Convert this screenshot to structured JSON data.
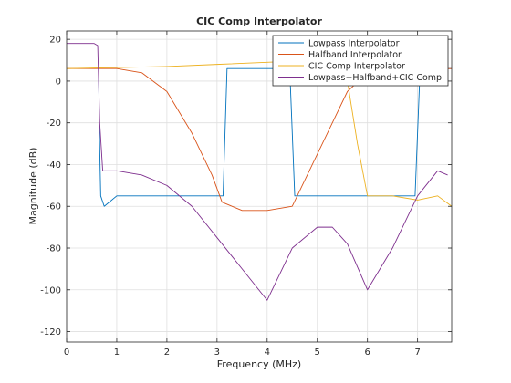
{
  "chart_data": {
    "type": "line",
    "title": "CIC Comp Interpolator",
    "xlabel": "Frequency (MHz)",
    "ylabel": "Magnitude (dB)",
    "xlim": [
      0,
      7.68
    ],
    "ylim": [
      -125,
      24
    ],
    "xticks": [
      0,
      1,
      2,
      3,
      4,
      5,
      6,
      7
    ],
    "yticks": [
      -120,
      -100,
      -80,
      -60,
      -40,
      -20,
      0,
      20
    ],
    "grid": true,
    "legend_position": "top-right",
    "series": [
      {
        "name": "Lowpass Interpolator",
        "color": "#0072BD",
        "shape": "Passband near 6 dB at 3.2-4.5 MHz and beyond 7.0 MHz; stopband ripple peaking near -55 dB with nulls down to about -120 dB",
        "points": [
          [
            0.64,
            6
          ],
          [
            0.65,
            -20
          ],
          [
            0.68,
            -55
          ],
          [
            0.75,
            -60
          ],
          [
            1.0,
            -55
          ],
          [
            1.5,
            -55
          ],
          [
            2.0,
            -55
          ],
          [
            2.5,
            -55
          ],
          [
            3.0,
            -55
          ],
          [
            3.12,
            -55
          ],
          [
            3.2,
            6
          ],
          [
            3.5,
            6
          ],
          [
            4.0,
            6
          ],
          [
            4.45,
            6
          ],
          [
            4.55,
            -55
          ],
          [
            5.0,
            -55
          ],
          [
            5.5,
            -55
          ],
          [
            6.0,
            -55
          ],
          [
            6.5,
            -55
          ],
          [
            6.95,
            -55
          ],
          [
            7.05,
            6
          ],
          [
            7.4,
            6
          ],
          [
            7.68,
            6
          ]
        ]
      },
      {
        "name": "Halfband Interpolator",
        "color": "#D95319",
        "shape": "Passband 6 dB from 0 to about 1.5 MHz, rolls off to about -60 dB near 3.1 MHz, stopband ripple -62 to -72 dB, second passband near 6 dB around 6.1-7.5 MHz",
        "points": [
          [
            0,
            6
          ],
          [
            1.0,
            6
          ],
          [
            1.5,
            4
          ],
          [
            2.0,
            -5
          ],
          [
            2.5,
            -25
          ],
          [
            2.9,
            -45
          ],
          [
            3.1,
            -58
          ],
          [
            3.5,
            -62
          ],
          [
            4.0,
            -62
          ],
          [
            4.5,
            -60
          ],
          [
            4.8,
            -45
          ],
          [
            5.2,
            -25
          ],
          [
            5.6,
            -5
          ],
          [
            6.0,
            4
          ],
          [
            6.5,
            6
          ],
          [
            7.0,
            6
          ],
          [
            7.68,
            6
          ]
        ]
      },
      {
        "name": "CIC Comp Interpolator",
        "color": "#EDB120",
        "shape": "Rises slowly from 6 dB at 0 to about 10 dB near 5.4 MHz, then falls steeply to about -55 dB near 6 MHz; stopband lobes near -55 to -65 dB",
        "points": [
          [
            0,
            6
          ],
          [
            1.0,
            6.5
          ],
          [
            2.0,
            7
          ],
          [
            3.0,
            8
          ],
          [
            4.0,
            9
          ],
          [
            5.0,
            10
          ],
          [
            5.4,
            10
          ],
          [
            5.6,
            0
          ],
          [
            5.8,
            -30
          ],
          [
            6.0,
            -55
          ],
          [
            6.5,
            -55
          ],
          [
            7.0,
            -57
          ],
          [
            7.4,
            -55
          ],
          [
            7.68,
            -60
          ]
        ]
      },
      {
        "name": "Lowpass+Halfband+CIC Comp",
        "color": "#7E2F8E",
        "shape": "Passband about 18 dB from 0 to 0.6 MHz, sharp drop to about -43 dB, stopband ripple envelope decaying with frequency; lobes near -70 dB around 5.2 MHz and rising to -43 dB near 7.4 MHz",
        "points": [
          [
            0,
            18
          ],
          [
            0.3,
            18
          ],
          [
            0.55,
            18
          ],
          [
            0.62,
            17
          ],
          [
            0.66,
            -20
          ],
          [
            0.72,
            -43
          ],
          [
            1.0,
            -43
          ],
          [
            1.5,
            -45
          ],
          [
            2.0,
            -50
          ],
          [
            2.5,
            -60
          ],
          [
            3.0,
            -75
          ],
          [
            3.5,
            -90
          ],
          [
            4.0,
            -105
          ],
          [
            4.5,
            -80
          ],
          [
            5.0,
            -70
          ],
          [
            5.3,
            -70
          ],
          [
            5.6,
            -78
          ],
          [
            6.0,
            -100
          ],
          [
            6.5,
            -80
          ],
          [
            7.0,
            -55
          ],
          [
            7.4,
            -43
          ],
          [
            7.6,
            -45
          ]
        ]
      }
    ]
  }
}
